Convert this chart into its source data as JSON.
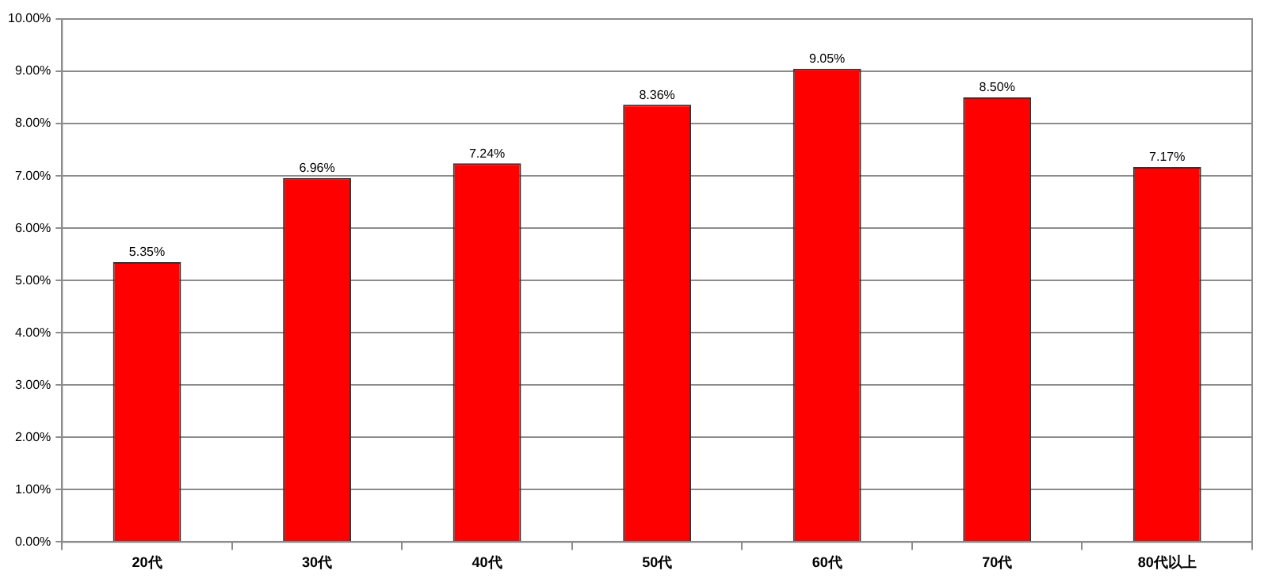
{
  "chart_data": {
    "type": "bar",
    "categories": [
      "20代",
      "30代",
      "40代",
      "50代",
      "60代",
      "70代",
      "80代以上"
    ],
    "values": [
      5.35,
      6.96,
      7.24,
      8.36,
      9.05,
      8.5,
      7.17
    ],
    "value_labels": [
      "5.35%",
      "6.96%",
      "7.24%",
      "8.36%",
      "9.05%",
      "8.50%",
      "7.17%"
    ],
    "color": "#ff0000",
    "ylim": [
      0,
      10
    ],
    "yticks": [
      {
        "value": 0,
        "label": "0.00%"
      },
      {
        "value": 1,
        "label": "1.00%"
      },
      {
        "value": 2,
        "label": "2.00%"
      },
      {
        "value": 3,
        "label": "3.00%"
      },
      {
        "value": 4,
        "label": "4.00%"
      },
      {
        "value": 5,
        "label": "5.00%"
      },
      {
        "value": 6,
        "label": "6.00%"
      },
      {
        "value": 7,
        "label": "7.00%"
      },
      {
        "value": 8,
        "label": "8.00%"
      },
      {
        "value": 9,
        "label": "9.00%"
      },
      {
        "value": 10,
        "label": "10.00%"
      }
    ],
    "grid": "y",
    "legend": false
  }
}
